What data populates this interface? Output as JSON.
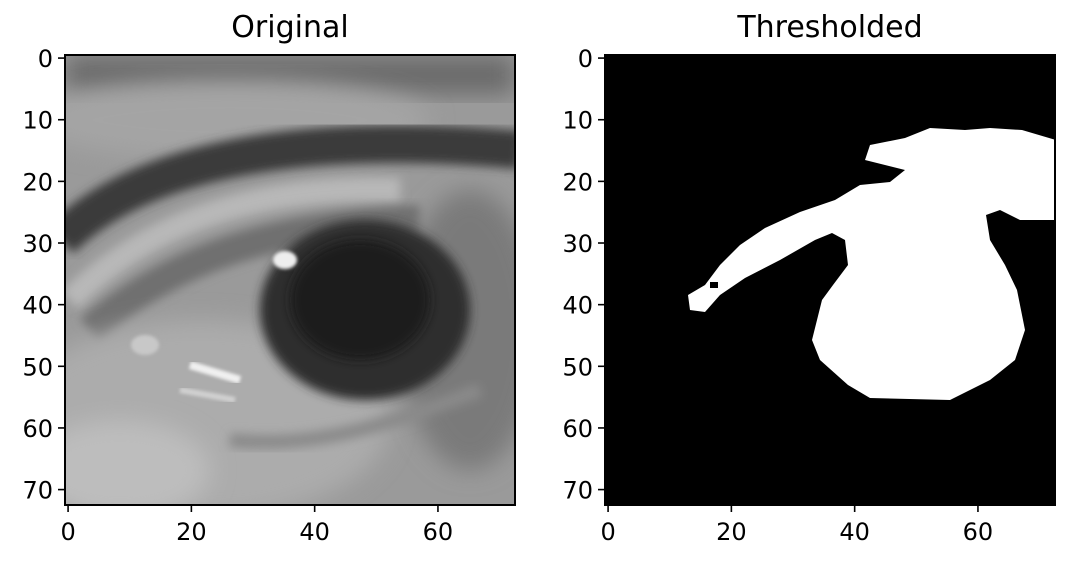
{
  "chart_data": [
    {
      "type": "image",
      "title": "Original",
      "x_ticks": [
        "0",
        "20",
        "40",
        "60"
      ],
      "y_ticks": [
        "0",
        "10",
        "20",
        "30",
        "40",
        "50",
        "60",
        "70"
      ],
      "xlim": [
        -0.5,
        72.5
      ],
      "ylim": [
        72.5,
        -0.5
      ],
      "image_size": [
        73,
        73
      ],
      "colormap": "gray",
      "content": "grayscale close-up photograph of a human eye; dark iris centered near x=45, y=40; eyebrow crease arcing across the top; bright specular highlights near (35,33) and (25,51)"
    },
    {
      "type": "image",
      "title": "Thresholded",
      "x_ticks": [
        "0",
        "20",
        "40",
        "60"
      ],
      "y_ticks": [
        "0",
        "10",
        "20",
        "30",
        "40",
        "50",
        "60",
        "70"
      ],
      "xlim": [
        -0.5,
        72.5
      ],
      "ylim": [
        72.5,
        -0.5
      ],
      "image_size": [
        73,
        73
      ],
      "colormap": "binary (black background, white foreground)",
      "content": "white blob covering the iris region (x≈33–67, y≈28–55) joined to an upper streak from (13,40) to (72,13)"
    }
  ]
}
